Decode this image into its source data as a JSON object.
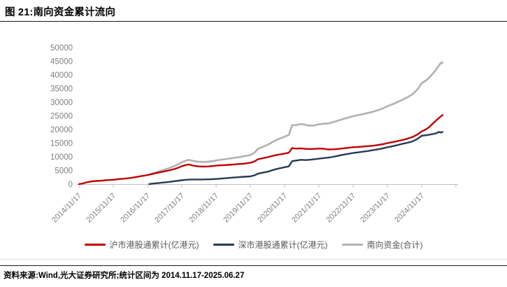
{
  "title": "图 21:南向资金累计流向",
  "footer": {
    "source_text": "资料来源:Wind,光大证券研究所;统计区间为 2014.11.17-2025.06.27"
  },
  "chart_data": {
    "type": "line",
    "title": "南向资金累计流向",
    "xlabel": "",
    "ylabel": "亿港元",
    "ylim": [
      0,
      50000
    ],
    "grid": false,
    "legend_position": "bottom",
    "axis_color": "#c0c0c0",
    "tick_label_color": "#7f7f7f",
    "y_ticks": [
      0,
      5000,
      10000,
      15000,
      20000,
      25000,
      30000,
      35000,
      40000,
      45000,
      50000
    ],
    "x_tick_labels": [
      "2014/11/17",
      "2015/11/17",
      "2016/11/17",
      "2017/11/17",
      "2018/11/17",
      "2019/11/17",
      "2020/11/17",
      "2021/11/17",
      "2022/11/17",
      "2023/11/17",
      "2024/11/17"
    ],
    "x_start_year": 2014.88,
    "x_end_year": 2025.49,
    "series": [
      {
        "name": "沪市港股通累计(亿港元)",
        "color": "#c00000",
        "points": [
          [
            2014.88,
            0
          ],
          [
            2015.0,
            250
          ],
          [
            2015.1,
            650
          ],
          [
            2015.25,
            1000
          ],
          [
            2015.4,
            1150
          ],
          [
            2015.55,
            1250
          ],
          [
            2015.7,
            1450
          ],
          [
            2015.88,
            1600
          ],
          [
            2016.05,
            1850
          ],
          [
            2016.2,
            2000
          ],
          [
            2016.35,
            2200
          ],
          [
            2016.5,
            2500
          ],
          [
            2016.65,
            2850
          ],
          [
            2016.78,
            3100
          ],
          [
            2016.93,
            3450
          ],
          [
            2017.05,
            3800
          ],
          [
            2017.2,
            4200
          ],
          [
            2017.35,
            4600
          ],
          [
            2017.5,
            5000
          ],
          [
            2017.65,
            5500
          ],
          [
            2017.78,
            6000
          ],
          [
            2017.88,
            6600
          ],
          [
            2018.0,
            7000
          ],
          [
            2018.08,
            7200
          ],
          [
            2018.2,
            6800
          ],
          [
            2018.35,
            6500
          ],
          [
            2018.5,
            6400
          ],
          [
            2018.65,
            6450
          ],
          [
            2018.8,
            6650
          ],
          [
            2018.95,
            6850
          ],
          [
            2019.1,
            6950
          ],
          [
            2019.25,
            7050
          ],
          [
            2019.4,
            7200
          ],
          [
            2019.55,
            7350
          ],
          [
            2019.7,
            7500
          ],
          [
            2019.88,
            7800
          ],
          [
            2020.0,
            8300
          ],
          [
            2020.1,
            9100
          ],
          [
            2020.25,
            9500
          ],
          [
            2020.4,
            9900
          ],
          [
            2020.55,
            10400
          ],
          [
            2020.7,
            10800
          ],
          [
            2020.85,
            11100
          ],
          [
            2021.0,
            11500
          ],
          [
            2021.1,
            13200
          ],
          [
            2021.2,
            13000
          ],
          [
            2021.35,
            13100
          ],
          [
            2021.5,
            12900
          ],
          [
            2021.65,
            12850
          ],
          [
            2021.88,
            13000
          ],
          [
            2022.0,
            13000
          ],
          [
            2022.15,
            12700
          ],
          [
            2022.3,
            12750
          ],
          [
            2022.45,
            12900
          ],
          [
            2022.6,
            13100
          ],
          [
            2022.75,
            13300
          ],
          [
            2022.88,
            13500
          ],
          [
            2023.0,
            13600
          ],
          [
            2023.15,
            13750
          ],
          [
            2023.3,
            13900
          ],
          [
            2023.45,
            14050
          ],
          [
            2023.6,
            14300
          ],
          [
            2023.75,
            14650
          ],
          [
            2023.88,
            15000
          ],
          [
            2024.0,
            15300
          ],
          [
            2024.15,
            15700
          ],
          [
            2024.3,
            16100
          ],
          [
            2024.45,
            16600
          ],
          [
            2024.6,
            17200
          ],
          [
            2024.75,
            18100
          ],
          [
            2024.88,
            19300
          ],
          [
            2025.0,
            20000
          ],
          [
            2025.1,
            20900
          ],
          [
            2025.2,
            22100
          ],
          [
            2025.3,
            23300
          ],
          [
            2025.4,
            24400
          ],
          [
            2025.49,
            25300
          ]
        ]
      },
      {
        "name": "深市港股通累计(亿港元)",
        "color": "#253b56",
        "points": [
          [
            2016.93,
            0
          ],
          [
            2017.05,
            200
          ],
          [
            2017.2,
            400
          ],
          [
            2017.35,
            600
          ],
          [
            2017.5,
            800
          ],
          [
            2017.65,
            1050
          ],
          [
            2017.78,
            1250
          ],
          [
            2017.88,
            1400
          ],
          [
            2018.0,
            1600
          ],
          [
            2018.15,
            1700
          ],
          [
            2018.3,
            1700
          ],
          [
            2018.45,
            1700
          ],
          [
            2018.6,
            1750
          ],
          [
            2018.75,
            1800
          ],
          [
            2018.95,
            1950
          ],
          [
            2019.1,
            2100
          ],
          [
            2019.25,
            2250
          ],
          [
            2019.4,
            2400
          ],
          [
            2019.55,
            2550
          ],
          [
            2019.7,
            2700
          ],
          [
            2019.88,
            2850
          ],
          [
            2020.0,
            3200
          ],
          [
            2020.1,
            3800
          ],
          [
            2020.25,
            4200
          ],
          [
            2020.4,
            4600
          ],
          [
            2020.55,
            5200
          ],
          [
            2020.7,
            5700
          ],
          [
            2020.85,
            6100
          ],
          [
            2021.0,
            6500
          ],
          [
            2021.1,
            8400
          ],
          [
            2021.2,
            8600
          ],
          [
            2021.35,
            8900
          ],
          [
            2021.5,
            8800
          ],
          [
            2021.65,
            8950
          ],
          [
            2021.88,
            9300
          ],
          [
            2022.0,
            9500
          ],
          [
            2022.15,
            9700
          ],
          [
            2022.3,
            10000
          ],
          [
            2022.45,
            10400
          ],
          [
            2022.6,
            10800
          ],
          [
            2022.75,
            11100
          ],
          [
            2022.88,
            11400
          ],
          [
            2023.0,
            11600
          ],
          [
            2023.15,
            11850
          ],
          [
            2023.3,
            12100
          ],
          [
            2023.45,
            12400
          ],
          [
            2023.6,
            12750
          ],
          [
            2023.75,
            13100
          ],
          [
            2023.88,
            13500
          ],
          [
            2024.0,
            13800
          ],
          [
            2024.15,
            14200
          ],
          [
            2024.3,
            14700
          ],
          [
            2024.45,
            15100
          ],
          [
            2024.6,
            15600
          ],
          [
            2024.75,
            16500
          ],
          [
            2024.88,
            17700
          ],
          [
            2025.0,
            17900
          ],
          [
            2025.1,
            18100
          ],
          [
            2025.2,
            18300
          ],
          [
            2025.3,
            18600
          ],
          [
            2025.38,
            19100
          ],
          [
            2025.44,
            18900
          ],
          [
            2025.49,
            19100
          ]
        ]
      },
      {
        "name": "南向资金(合计)",
        "color": "#b3b3b3",
        "points": [
          [
            2016.93,
            3450
          ],
          [
            2017.05,
            4000
          ],
          [
            2017.2,
            4600
          ],
          [
            2017.35,
            5200
          ],
          [
            2017.5,
            5800
          ],
          [
            2017.65,
            6550
          ],
          [
            2017.78,
            7250
          ],
          [
            2017.88,
            8000
          ],
          [
            2018.0,
            8600
          ],
          [
            2018.08,
            8900
          ],
          [
            2018.2,
            8500
          ],
          [
            2018.35,
            8200
          ],
          [
            2018.5,
            8100
          ],
          [
            2018.65,
            8200
          ],
          [
            2018.8,
            8450
          ],
          [
            2018.95,
            8800
          ],
          [
            2019.1,
            9050
          ],
          [
            2019.25,
            9300
          ],
          [
            2019.4,
            9600
          ],
          [
            2019.55,
            9900
          ],
          [
            2019.7,
            10200
          ],
          [
            2019.88,
            10650
          ],
          [
            2020.0,
            11500
          ],
          [
            2020.1,
            12900
          ],
          [
            2020.25,
            13700
          ],
          [
            2020.4,
            14500
          ],
          [
            2020.55,
            15600
          ],
          [
            2020.7,
            16500
          ],
          [
            2020.85,
            17200
          ],
          [
            2021.0,
            18000
          ],
          [
            2021.1,
            21600
          ],
          [
            2021.2,
            21600
          ],
          [
            2021.35,
            22000
          ],
          [
            2021.5,
            21700
          ],
          [
            2021.6,
            21400
          ],
          [
            2021.75,
            21500
          ],
          [
            2021.88,
            21900
          ],
          [
            2022.0,
            22100
          ],
          [
            2022.15,
            22200
          ],
          [
            2022.3,
            22700
          ],
          [
            2022.45,
            23300
          ],
          [
            2022.6,
            23900
          ],
          [
            2022.75,
            24400
          ],
          [
            2022.88,
            24900
          ],
          [
            2023.0,
            25200
          ],
          [
            2023.15,
            25600
          ],
          [
            2023.3,
            26000
          ],
          [
            2023.45,
            26500
          ],
          [
            2023.6,
            27050
          ],
          [
            2023.75,
            27750
          ],
          [
            2023.88,
            28500
          ],
          [
            2024.0,
            29100
          ],
          [
            2024.15,
            29900
          ],
          [
            2024.3,
            30800
          ],
          [
            2024.45,
            31700
          ],
          [
            2024.6,
            32800
          ],
          [
            2024.75,
            34600
          ],
          [
            2024.88,
            37000
          ],
          [
            2025.0,
            37900
          ],
          [
            2025.1,
            39000
          ],
          [
            2025.2,
            40400
          ],
          [
            2025.3,
            41900
          ],
          [
            2025.38,
            43400
          ],
          [
            2025.44,
            44400
          ],
          [
            2025.46,
            44200
          ],
          [
            2025.49,
            44600
          ]
        ]
      }
    ]
  }
}
